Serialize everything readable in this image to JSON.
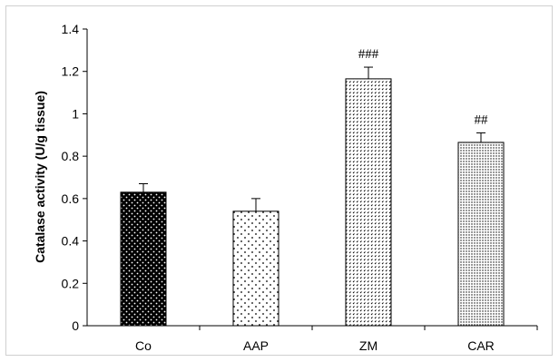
{
  "chart_data": {
    "type": "bar",
    "categories": [
      "Co",
      "AAP",
      "ZM",
      "CAR"
    ],
    "values": [
      0.63,
      0.54,
      1.165,
      0.865
    ],
    "errors": [
      0.04,
      0.06,
      0.055,
      0.045
    ],
    "annotations": [
      "",
      "",
      "###",
      "##"
    ],
    "ylabel": "Catalase activity (U/g tissue)",
    "xlabel": "",
    "ylim": [
      0,
      1.4
    ],
    "yticks": [
      0,
      0.2,
      0.4,
      0.6,
      0.8,
      1,
      1.2,
      1.4
    ],
    "ytick_labels": [
      "0",
      "0.2",
      "0.4",
      "0.6",
      "0.8",
      "1",
      "1.2",
      "1.4"
    ],
    "grid": false,
    "legend": "none",
    "bar_patterns": [
      "dense-dots-black",
      "sparse-dots",
      "carets",
      "fine-dots"
    ],
    "colors": {
      "axis": "#000000",
      "bar_stroke": "#000000",
      "bar_fill": "#ffffff",
      "frame": "#d0d0d0"
    }
  }
}
